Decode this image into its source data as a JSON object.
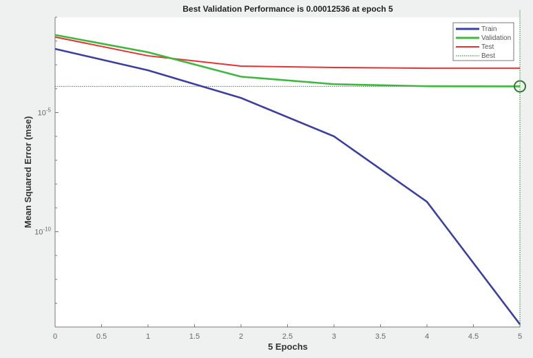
{
  "chart_data": {
    "type": "line",
    "title": "Best Validation Performance is 0.00012536 at epoch 5",
    "xlabel": "5 Epochs",
    "ylabel": "Mean Squared Error  (mse)",
    "yscale": "log",
    "xlim": [
      0,
      5
    ],
    "ylim": [
      1e-14,
      0.1
    ],
    "x": [
      0,
      1,
      2,
      3,
      4,
      5
    ],
    "xticks": [
      "0",
      "0.5",
      "1",
      "1.5",
      "2",
      "2.5",
      "3",
      "3.5",
      "4",
      "4.5",
      "5"
    ],
    "yticks": [
      {
        "value": 1e-05,
        "base": "10",
        "exp": "-5"
      },
      {
        "value": 1e-10,
        "base": "10",
        "exp": "-10"
      }
    ],
    "series": [
      {
        "name": "Train",
        "color": "#3a3fa0",
        "values": [
          0.0047,
          0.00059,
          4.1e-05,
          1e-06,
          1.8e-09,
          1.3e-14
        ]
      },
      {
        "name": "Validation",
        "color": "#3cb83c",
        "values": [
          0.018,
          0.0034,
          0.00032,
          0.000155,
          0.000127,
          0.00012536
        ]
      },
      {
        "name": "Test",
        "color": "#e8312f",
        "values": [
          0.0148,
          0.0024,
          0.00089,
          0.00078,
          0.00072,
          0.00072
        ]
      }
    ],
    "best": {
      "name": "Best",
      "epoch": 5,
      "value": 0.00012536,
      "color": "#3a9a3a"
    },
    "legend": "top-right",
    "grid": false
  }
}
